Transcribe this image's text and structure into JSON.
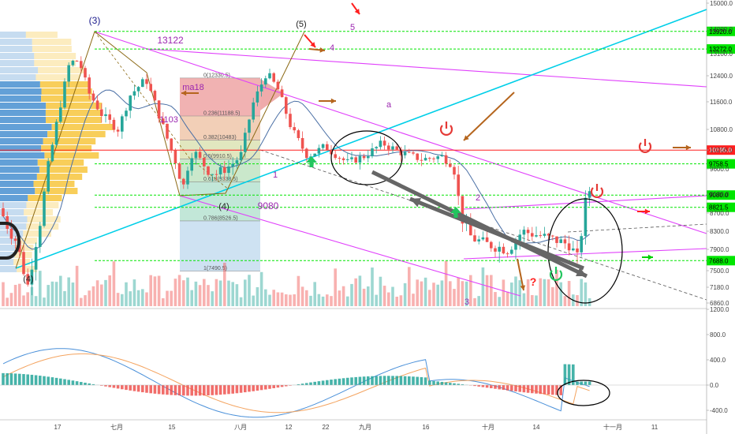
{
  "chart_data": [
    {
      "type": "candlestick",
      "title": "",
      "price_axis": {
        "ylim": [
          6800,
          15200
        ],
        "ticks": [
          6860.0,
          7180.0,
          7500.0,
          7900.0,
          8300.0,
          8700.0,
          9100.0,
          9600.0,
          10200.0,
          10800.0,
          11600.0,
          12400.0,
          13100.0,
          14000.0,
          15000.0
        ]
      },
      "price_labels": [
        {
          "value": 13920.0,
          "text": "13920.0",
          "color": "#00e600"
        },
        {
          "value": 13272.0,
          "text": "13272.0",
          "color": "#00e600"
        },
        {
          "value": 10195.0,
          "text": "10195.0",
          "color": "#ff1f1f"
        },
        {
          "value": 9758.5,
          "text": "9758.5",
          "color": "#00e600"
        },
        {
          "value": 9080.0,
          "text": "9080.0",
          "color": "#00e600"
        },
        {
          "value": 8821.5,
          "text": "8821.5",
          "color": "#00e600"
        },
        {
          "value": 7688.0,
          "text": "7688.0",
          "color": "#00e600"
        }
      ],
      "x_ticks": [
        "17",
        "七月",
        "15",
        "八月",
        "12",
        "22",
        "九月",
        "16",
        "十月",
        "14",
        "十一月",
        "11"
      ],
      "series": [
        {
          "name": "ma18",
          "type": "line",
          "color": "#4a6fa5"
        },
        {
          "name": "volume",
          "type": "bar",
          "colors": [
            "#26a69a",
            "#ef5350"
          ]
        }
      ],
      "fibonacci": [
        {
          "ratio": "0",
          "text": "0(12330.5)",
          "price": 12330.5
        },
        {
          "ratio": "0.236",
          "text": "0.236(11188.5)",
          "price": 11188.5
        },
        {
          "ratio": "0.382",
          "text": "0.382(10483)",
          "price": 10483
        },
        {
          "ratio": "0.5",
          "text": "0.5(9910.5)",
          "price": 9910.5
        },
        {
          "ratio": "0.618",
          "text": "0.618(9338.5)",
          "price": 9338.5
        },
        {
          "ratio": "0.786",
          "text": "0.786(8526.5)",
          "price": 8526.5
        },
        {
          "ratio": "1",
          "text": "1(7490.5)",
          "price": 7490.5
        }
      ],
      "annotations": [
        {
          "text": "(3)",
          "color": "#1a1a8c"
        },
        {
          "text": "13122",
          "color": "#9c27b0"
        },
        {
          "text": "(5)",
          "color": "#222222"
        },
        {
          "text": "5",
          "color": "#9c27b0"
        },
        {
          "text": "4",
          "color": "#9c27b0"
        },
        {
          "text": "ma18",
          "color": "#9c27b0"
        },
        {
          "text": "1103",
          "color": "#9c27b0"
        },
        {
          "text": "a",
          "color": "#9c27b0"
        },
        {
          "text": "1",
          "color": "#9c27b0"
        },
        {
          "text": "(4)",
          "color": "#222222"
        },
        {
          "text": "9080",
          "color": "#9c27b0"
        },
        {
          "text": "2",
          "color": "#9c27b0"
        },
        {
          "text": "(4)",
          "color": "#222222"
        },
        {
          "text": "3",
          "color": "#9c27b0"
        },
        {
          "text": "?",
          "color": "#ff1f1f"
        }
      ]
    },
    {
      "type": "macd",
      "ylim": [
        -650,
        1200
      ],
      "ticks": [
        -400.0,
        0.0,
        400.0,
        800.0,
        1200.0
      ],
      "series": [
        {
          "type": "line",
          "color": "#4a90d9"
        },
        {
          "type": "line",
          "color": "#f4a460"
        },
        {
          "type": "bar",
          "colors": [
            "#26a69a",
            "#ef5350"
          ]
        }
      ]
    }
  ]
}
